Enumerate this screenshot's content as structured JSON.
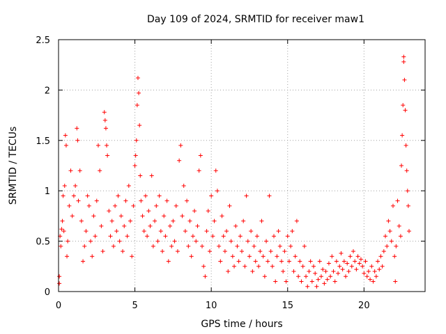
{
  "chart_data": {
    "type": "scatter",
    "title": "Day 109 of 2024, SRMTID for receiver maw1",
    "xlabel": "GPS time / hours",
    "ylabel": "SRMTID / TECUs",
    "xlim": [
      0,
      24
    ],
    "ylim": [
      0,
      2.5
    ],
    "xticks": [
      0,
      5,
      10,
      15,
      20
    ],
    "yticks": [
      0,
      0.5,
      1,
      1.5,
      2,
      2.5
    ],
    "xtick_labels": [
      "0",
      "5",
      "10",
      "15",
      "20"
    ],
    "ytick_labels": [
      "0",
      "0.5",
      "1",
      "1.5",
      "2",
      "2.5"
    ],
    "grid": true,
    "marker": "+",
    "series": [
      {
        "name": "SRMTID",
        "color": "#ff0000",
        "points": [
          [
            0.05,
            0.15
          ],
          [
            0.05,
            0.08
          ],
          [
            0.1,
            0.55
          ],
          [
            0.15,
            0.45
          ],
          [
            0.2,
            0.62
          ],
          [
            0.25,
            0.7
          ],
          [
            0.3,
            0.95
          ],
          [
            0.35,
            0.6
          ],
          [
            0.4,
            1.05
          ],
          [
            0.45,
            1.55
          ],
          [
            0.5,
            1.45
          ],
          [
            0.55,
            0.35
          ],
          [
            0.6,
            0.5
          ],
          [
            0.7,
            0.85
          ],
          [
            0.8,
            1.2
          ],
          [
            0.9,
            0.75
          ],
          [
            1.0,
            0.95
          ],
          [
            1.1,
            1.05
          ],
          [
            1.2,
            1.62
          ],
          [
            1.25,
            1.5
          ],
          [
            1.3,
            0.9
          ],
          [
            1.4,
            1.2
          ],
          [
            1.5,
            0.7
          ],
          [
            1.6,
            0.3
          ],
          [
            1.7,
            0.45
          ],
          [
            1.8,
            0.6
          ],
          [
            1.9,
            0.95
          ],
          [
            2.0,
            0.85
          ],
          [
            2.1,
            0.5
          ],
          [
            2.2,
            0.35
          ],
          [
            2.3,
            0.75
          ],
          [
            2.4,
            0.55
          ],
          [
            2.5,
            0.9
          ],
          [
            2.6,
            1.45
          ],
          [
            2.7,
            1.2
          ],
          [
            2.8,
            0.65
          ],
          [
            2.9,
            0.4
          ],
          [
            3.0,
            1.78
          ],
          [
            3.05,
            1.7
          ],
          [
            3.1,
            1.62
          ],
          [
            3.15,
            1.45
          ],
          [
            3.2,
            1.35
          ],
          [
            3.3,
            0.8
          ],
          [
            3.4,
            0.55
          ],
          [
            3.5,
            0.7
          ],
          [
            3.6,
            0.45
          ],
          [
            3.7,
            0.85
          ],
          [
            3.8,
            0.6
          ],
          [
            3.9,
            0.95
          ],
          [
            4.0,
            0.5
          ],
          [
            4.1,
            0.75
          ],
          [
            4.2,
            0.4
          ],
          [
            4.3,
            0.65
          ],
          [
            4.4,
            0.9
          ],
          [
            4.5,
            0.55
          ],
          [
            4.6,
            1.05
          ],
          [
            4.7,
            0.7
          ],
          [
            4.8,
            0.35
          ],
          [
            4.9,
            0.85
          ],
          [
            5.0,
            1.25
          ],
          [
            5.05,
            1.35
          ],
          [
            5.1,
            1.5
          ],
          [
            5.15,
            1.85
          ],
          [
            5.2,
            2.12
          ],
          [
            5.25,
            1.97
          ],
          [
            5.3,
            1.65
          ],
          [
            5.35,
            1.15
          ],
          [
            5.4,
            0.9
          ],
          [
            5.5,
            0.75
          ],
          [
            5.6,
            0.6
          ],
          [
            5.7,
            0.95
          ],
          [
            5.8,
            0.55
          ],
          [
            5.9,
            0.8
          ],
          [
            6.0,
            0.65
          ],
          [
            6.1,
            1.15
          ],
          [
            6.2,
            0.45
          ],
          [
            6.3,
            0.7
          ],
          [
            6.4,
            0.85
          ],
          [
            6.5,
            0.5
          ],
          [
            6.6,
            0.95
          ],
          [
            6.7,
            0.6
          ],
          [
            6.8,
            0.4
          ],
          [
            6.9,
            0.75
          ],
          [
            7.0,
            0.55
          ],
          [
            7.1,
            0.9
          ],
          [
            7.2,
            0.3
          ],
          [
            7.3,
            0.65
          ],
          [
            7.4,
            0.45
          ],
          [
            7.5,
            0.7
          ],
          [
            7.6,
            0.5
          ],
          [
            7.7,
            0.85
          ],
          [
            7.8,
            0.4
          ],
          [
            7.9,
            1.3
          ],
          [
            8.0,
            1.45
          ],
          [
            8.1,
            0.75
          ],
          [
            8.2,
            1.05
          ],
          [
            8.3,
            0.6
          ],
          [
            8.4,
            0.9
          ],
          [
            8.5,
            0.45
          ],
          [
            8.6,
            0.7
          ],
          [
            8.7,
            0.35
          ],
          [
            8.8,
            0.55
          ],
          [
            8.9,
            0.8
          ],
          [
            9.0,
            0.5
          ],
          [
            9.1,
            0.65
          ],
          [
            9.2,
            1.2
          ],
          [
            9.3,
            1.35
          ],
          [
            9.4,
            0.45
          ],
          [
            9.5,
            0.25
          ],
          [
            9.6,
            0.15
          ],
          [
            9.7,
            0.6
          ],
          [
            9.8,
            0.8
          ],
          [
            9.9,
            0.4
          ],
          [
            10.0,
            0.95
          ],
          [
            10.1,
            0.55
          ],
          [
            10.2,
            0.7
          ],
          [
            10.3,
            1.2
          ],
          [
            10.4,
            1.0
          ],
          [
            10.5,
            0.45
          ],
          [
            10.6,
            0.3
          ],
          [
            10.7,
            0.75
          ],
          [
            10.8,
            0.55
          ],
          [
            10.9,
            0.4
          ],
          [
            11.0,
            0.6
          ],
          [
            11.1,
            0.2
          ],
          [
            11.2,
            0.85
          ],
          [
            11.3,
            0.5
          ],
          [
            11.4,
            0.35
          ],
          [
            11.5,
            0.25
          ],
          [
            11.6,
            0.65
          ],
          [
            11.7,
            0.45
          ],
          [
            11.8,
            0.3
          ],
          [
            11.9,
            0.55
          ],
          [
            12.0,
            0.4
          ],
          [
            12.1,
            0.7
          ],
          [
            12.2,
            0.25
          ],
          [
            12.3,
            0.95
          ],
          [
            12.4,
            0.5
          ],
          [
            12.5,
            0.35
          ],
          [
            12.6,
            0.6
          ],
          [
            12.7,
            0.2
          ],
          [
            12.8,
            0.45
          ],
          [
            12.9,
            0.3
          ],
          [
            13.0,
            0.55
          ],
          [
            13.1,
            0.25
          ],
          [
            13.2,
            0.4
          ],
          [
            13.3,
            0.7
          ],
          [
            13.4,
            0.35
          ],
          [
            13.5,
            0.15
          ],
          [
            13.6,
            0.5
          ],
          [
            13.7,
            0.3
          ],
          [
            13.8,
            0.95
          ],
          [
            13.9,
            0.4
          ],
          [
            14.0,
            0.25
          ],
          [
            14.1,
            0.55
          ],
          [
            14.2,
            0.1
          ],
          [
            14.3,
            0.35
          ],
          [
            14.4,
            0.6
          ],
          [
            14.5,
            0.45
          ],
          [
            14.6,
            0.3
          ],
          [
            14.7,
            0.2
          ],
          [
            14.8,
            0.4
          ],
          [
            14.9,
            0.1
          ],
          [
            15.0,
            0.55
          ],
          [
            15.1,
            0.3
          ],
          [
            15.2,
            0.45
          ],
          [
            15.3,
            0.6
          ],
          [
            15.4,
            0.2
          ],
          [
            15.5,
            0.35
          ],
          [
            15.6,
            0.7
          ],
          [
            15.7,
            0.15
          ],
          [
            15.8,
            0.3
          ],
          [
            15.9,
            0.1
          ],
          [
            16.0,
            0.25
          ],
          [
            16.1,
            0.45
          ],
          [
            16.2,
            0.15
          ],
          [
            16.3,
            0.05
          ],
          [
            16.4,
            0.2
          ],
          [
            16.5,
            0.3
          ],
          [
            16.6,
            0.1
          ],
          [
            16.7,
            0.25
          ],
          [
            16.8,
            0.18
          ],
          [
            16.9,
            0.05
          ],
          [
            17.0,
            0.12
          ],
          [
            17.1,
            0.3
          ],
          [
            17.2,
            0.15
          ],
          [
            17.3,
            0.22
          ],
          [
            17.4,
            0.08
          ],
          [
            17.5,
            0.2
          ],
          [
            17.6,
            0.12
          ],
          [
            17.7,
            0.28
          ],
          [
            17.8,
            0.15
          ],
          [
            17.9,
            0.35
          ],
          [
            18.0,
            0.2
          ],
          [
            18.1,
            0.1
          ],
          [
            18.2,
            0.3
          ],
          [
            18.3,
            0.18
          ],
          [
            18.4,
            0.25
          ],
          [
            18.5,
            0.38
          ],
          [
            18.6,
            0.22
          ],
          [
            18.7,
            0.3
          ],
          [
            18.8,
            0.15
          ],
          [
            18.9,
            0.28
          ],
          [
            19.0,
            0.2
          ],
          [
            19.1,
            0.35
          ],
          [
            19.2,
            0.25
          ],
          [
            19.3,
            0.4
          ],
          [
            19.4,
            0.3
          ],
          [
            19.5,
            0.22
          ],
          [
            19.6,
            0.35
          ],
          [
            19.7,
            0.28
          ],
          [
            19.8,
            0.32
          ],
          [
            19.9,
            0.25
          ],
          [
            20.0,
            0.18
          ],
          [
            20.1,
            0.3
          ],
          [
            20.2,
            0.15
          ],
          [
            20.3,
            0.2
          ],
          [
            20.4,
            0.12
          ],
          [
            20.5,
            0.25
          ],
          [
            20.6,
            0.1
          ],
          [
            20.7,
            0.2
          ],
          [
            20.8,
            0.15
          ],
          [
            20.9,
            0.3
          ],
          [
            21.0,
            0.22
          ],
          [
            21.1,
            0.35
          ],
          [
            21.2,
            0.25
          ],
          [
            21.3,
            0.4
          ],
          [
            21.4,
            0.55
          ],
          [
            21.5,
            0.45
          ],
          [
            21.6,
            0.7
          ],
          [
            21.7,
            0.6
          ],
          [
            21.8,
            0.5
          ],
          [
            21.9,
            0.85
          ],
          [
            22.0,
            0.35
          ],
          [
            22.05,
            0.1
          ],
          [
            22.1,
            0.45
          ],
          [
            22.2,
            0.9
          ],
          [
            22.3,
            0.65
          ],
          [
            22.4,
            0.55
          ],
          [
            22.45,
            1.25
          ],
          [
            22.5,
            1.55
          ],
          [
            22.55,
            1.85
          ],
          [
            22.6,
            2.33
          ],
          [
            22.6,
            2.28
          ],
          [
            22.65,
            2.1
          ],
          [
            22.7,
            1.8
          ],
          [
            22.75,
            1.45
          ],
          [
            22.8,
            1.2
          ],
          [
            22.85,
            1.0
          ],
          [
            22.9,
            0.85
          ],
          [
            22.95,
            0.6
          ]
        ]
      }
    ]
  }
}
